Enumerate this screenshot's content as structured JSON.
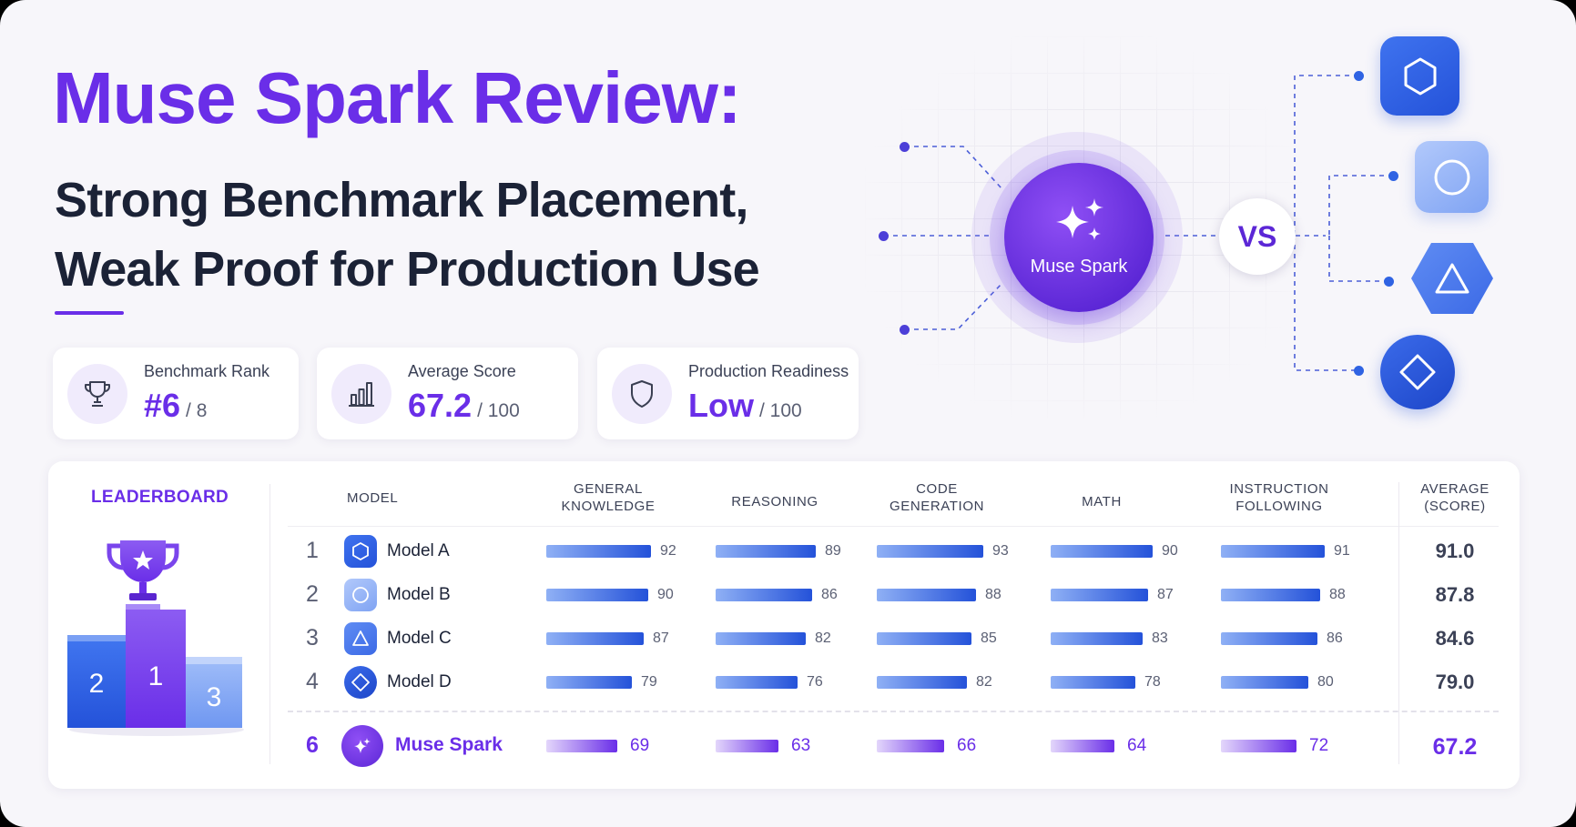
{
  "header": {
    "title": "Muse Spark Review:",
    "subtitle_line1": "Strong Benchmark Placement,",
    "subtitle_line2": "Weak Proof for Production Use"
  },
  "stats": [
    {
      "label": "Benchmark Rank",
      "value": "#6",
      "denominator": "/ 8",
      "icon": "trophy-icon"
    },
    {
      "label": "Average Score",
      "value": "67.2",
      "denominator": "/ 100",
      "icon": "bar-chart-icon"
    },
    {
      "label": "Production Readiness",
      "value": "Low",
      "denominator": "/ 100",
      "icon": "shield-icon"
    }
  ],
  "diagram": {
    "center_label": "Muse Spark",
    "vs_label": "VS",
    "nodes": [
      "hexagon-icon",
      "circle-icon",
      "triangle-icon",
      "diamond-icon"
    ]
  },
  "leaderboard": {
    "title": "LEADERBOARD",
    "podium": [
      "2",
      "1",
      "3"
    ],
    "columns": {
      "model": "MODEL",
      "general_knowledge": [
        "GENERAL",
        "KNOWLEDGE"
      ],
      "reasoning": [
        "REASONING"
      ],
      "code_generation": [
        "CODE",
        "GENERATION"
      ],
      "math": [
        "MATH"
      ],
      "instruction_following": [
        "INSTRUCTION",
        "FOLLOWING"
      ],
      "average": [
        "AVERAGE",
        "(SCORE)"
      ]
    },
    "rows": [
      {
        "rank": "1",
        "name": "Model A",
        "icon": "hexagon-icon",
        "scores": [
          92,
          89,
          93,
          90,
          91
        ],
        "average": "91.0",
        "highlight": false
      },
      {
        "rank": "2",
        "name": "Model B",
        "icon": "circle-icon",
        "scores": [
          90,
          86,
          88,
          87,
          88
        ],
        "average": "87.8",
        "highlight": false
      },
      {
        "rank": "3",
        "name": "Model C",
        "icon": "triangle-icon",
        "scores": [
          87,
          82,
          85,
          83,
          86
        ],
        "average": "84.6",
        "highlight": false
      },
      {
        "rank": "4",
        "name": "Model D",
        "icon": "diamond-icon",
        "scores": [
          79,
          76,
          82,
          78,
          80
        ],
        "average": "79.0",
        "highlight": false
      },
      {
        "rank": "6",
        "name": "Muse Spark",
        "icon": "sparkle-icon",
        "scores": [
          69,
          63,
          66,
          64,
          72
        ],
        "average": "67.2",
        "highlight": true
      }
    ]
  },
  "colors": {
    "accent_purple": "#6a2ee8",
    "accent_blue": "#2452d9",
    "text_dark": "#1b2236"
  }
}
